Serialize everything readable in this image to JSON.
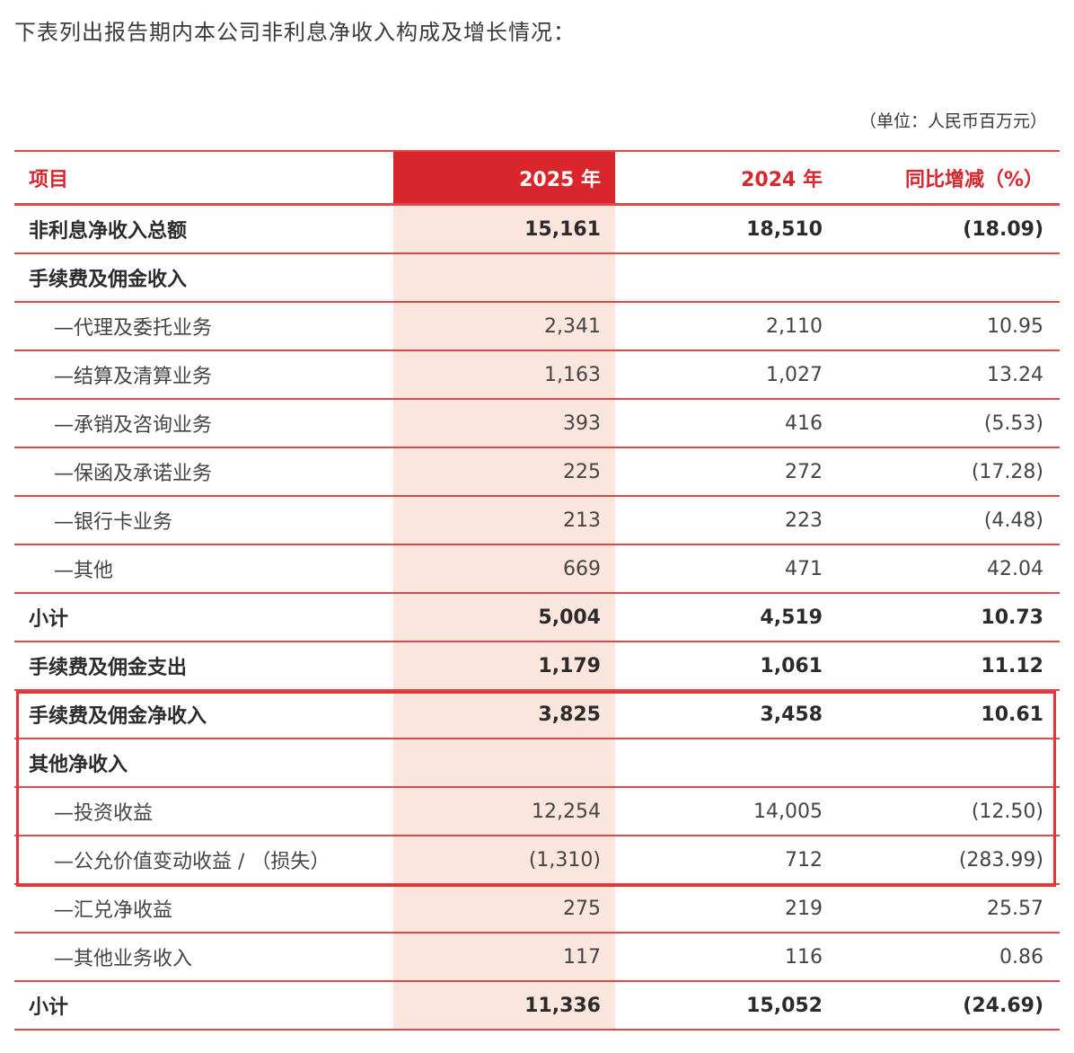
{
  "intro": "下表列出报告期内本公司非利息净收入构成及增长情况：",
  "unit": "（单位：人民币百万元）",
  "header": {
    "item": "项目",
    "y2025": "2025 年",
    "y2024": "2024 年",
    "change": "同比增减（%）"
  },
  "rows": [
    {
      "item": "非利息净收入总额",
      "y2025": "15,161",
      "y2024": "18,510",
      "change": "(18.09)"
    },
    {
      "item": "手续费及佣金收入",
      "y2025": "",
      "y2024": "",
      "change": ""
    },
    {
      "item": "—代理及委托业务",
      "y2025": "2,341",
      "y2024": "2,110",
      "change": "10.95"
    },
    {
      "item": "—结算及清算业务",
      "y2025": "1,163",
      "y2024": "1,027",
      "change": "13.24"
    },
    {
      "item": "—承销及咨询业务",
      "y2025": "393",
      "y2024": "416",
      "change": "(5.53)"
    },
    {
      "item": "—保函及承诺业务",
      "y2025": "225",
      "y2024": "272",
      "change": "(17.28)"
    },
    {
      "item": "—银行卡业务",
      "y2025": "213",
      "y2024": "223",
      "change": "(4.48)"
    },
    {
      "item": "—其他",
      "y2025": "669",
      "y2024": "471",
      "change": "42.04"
    },
    {
      "item": "小计",
      "y2025": "5,004",
      "y2024": "4,519",
      "change": "10.73"
    },
    {
      "item": "手续费及佣金支出",
      "y2025": "1,179",
      "y2024": "1,061",
      "change": "11.12"
    },
    {
      "item": "手续费及佣金净收入",
      "y2025": "3,825",
      "y2024": "3,458",
      "change": "10.61"
    },
    {
      "item": "其他净收入",
      "y2025": "",
      "y2024": "",
      "change": ""
    },
    {
      "item": "—投资收益",
      "y2025": "12,254",
      "y2024": "14,005",
      "change": "(12.50)"
    },
    {
      "item": "—公允价值变动收益 / （损失）",
      "y2025": "(1,310)",
      "y2024": "712",
      "change": "(283.99)"
    },
    {
      "item": "—汇兑净收益",
      "y2025": "275",
      "y2024": "219",
      "change": "25.57"
    },
    {
      "item": "—其他业务收入",
      "y2025": "117",
      "y2024": "116",
      "change": "0.86"
    },
    {
      "item": "小计",
      "y2025": "11,336",
      "y2024": "15,052",
      "change": "(24.69)"
    }
  ],
  "colors": {
    "accent": "#d9262c",
    "highlight_column": "#fbe6dd",
    "box": "#e33437"
  }
}
